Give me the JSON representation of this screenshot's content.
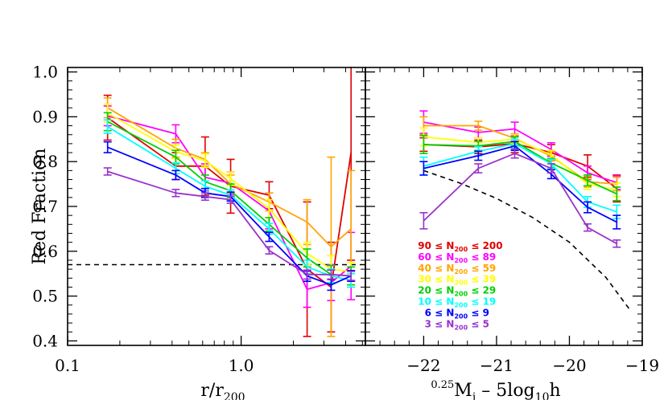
{
  "chart_data": [
    {
      "type": "line",
      "panel": "left",
      "xscale": "log",
      "xlim": [
        0.1,
        5.2
      ],
      "ylim": [
        0.39,
        1.01
      ],
      "xlabel_base": "r/r",
      "xlabel_sub": "200",
      "ylabel": "Red Fraction",
      "xtick_values": [
        0.1,
        1.0
      ],
      "xtick_labels": [
        "0.1",
        "1.0"
      ],
      "ytick_values": [
        0.4,
        0.5,
        0.6,
        0.7,
        0.8,
        0.9,
        1.0
      ],
      "ytick_labels": [
        "0.4",
        "0.5",
        "0.6",
        "0.7",
        "0.8",
        "0.9",
        "1.0"
      ],
      "reference_line": {
        "style": "dashed",
        "y": 0.57
      },
      "x": [
        0.17,
        0.42,
        0.62,
        0.87,
        1.45,
        2.4,
        3.3,
        4.3
      ],
      "series": [
        {
          "color": "#e00000",
          "values": [
            0.898,
            0.79,
            0.79,
            0.745,
            0.725,
            0.56,
            0.52,
            0.82
          ],
          "errors": [
            0.05,
            0.03,
            0.065,
            0.06,
            0.03,
            0.15,
            0.1,
            0.24
          ]
        },
        {
          "color": "#ff00ff",
          "values": [
            0.902,
            0.862,
            0.765,
            0.752,
            0.69,
            0.515,
            0.53,
            0.567
          ],
          "errors": [
            0.022,
            0.02,
            0.03,
            0.025,
            0.04,
            0.04,
            0.04,
            0.075
          ]
        },
        {
          "color": "#ffa500",
          "values": [
            0.92,
            0.83,
            0.805,
            0.75,
            0.71,
            0.665,
            0.61,
            0.65
          ],
          "errors": [
            0.022,
            0.02,
            0.015,
            0.02,
            0.02,
            0.05,
            0.2,
            0.13
          ]
        },
        {
          "color": "#ffff00",
          "values": [
            0.908,
            0.822,
            0.802,
            0.762,
            0.695,
            0.595,
            0.56,
            0.555
          ],
          "errors": [
            0.02,
            0.015,
            0.015,
            0.015,
            0.02,
            0.025,
            0.03,
            0.02
          ]
        },
        {
          "color": "#00d000",
          "values": [
            0.889,
            0.81,
            0.755,
            0.735,
            0.66,
            0.585,
            0.548,
            0.545
          ],
          "errors": [
            0.02,
            0.015,
            0.015,
            0.015,
            0.015,
            0.02,
            0.02,
            0.02
          ]
        },
        {
          "color": "#00ffff",
          "values": [
            0.878,
            0.785,
            0.745,
            0.725,
            0.65,
            0.565,
            0.545,
            0.535
          ],
          "errors": [
            0.015,
            0.012,
            0.012,
            0.012,
            0.012,
            0.015,
            0.015,
            0.015
          ]
        },
        {
          "color": "#0000ff",
          "values": [
            0.832,
            0.77,
            0.73,
            0.722,
            0.632,
            0.545,
            0.525,
            0.545
          ],
          "errors": [
            0.012,
            0.01,
            0.01,
            0.01,
            0.01,
            0.012,
            0.012,
            0.012
          ]
        },
        {
          "color": "#9932cc",
          "values": [
            0.778,
            0.73,
            0.722,
            0.715,
            0.602,
            0.548,
            0.548,
            0.545
          ],
          "errors": [
            0.008,
            0.008,
            0.008,
            0.008,
            0.008,
            0.01,
            0.01,
            0.01
          ]
        }
      ]
    },
    {
      "type": "line",
      "panel": "right",
      "xlim": [
        -22.8,
        -19
      ],
      "ylim": [
        0.39,
        1.01
      ],
      "xlabel_prefix": "0.25",
      "xlabel_base": "M",
      "xlabel_sub": "i",
      "xlabel_mid": " – 5log",
      "xlabel_sub2": "10",
      "xlabel_tail": "h",
      "xtick_values": [
        -22,
        -21,
        -20,
        -19
      ],
      "xtick_labels": [
        "−22",
        "−21",
        "−20",
        "−19"
      ],
      "dashed_curve": {
        "style": "dashed",
        "x": [
          -22.0,
          -21.5,
          -21.0,
          -20.5,
          -20.0,
          -19.5,
          -19.15
        ],
        "y": [
          0.78,
          0.752,
          0.718,
          0.675,
          0.62,
          0.542,
          0.465
        ]
      },
      "x": [
        -22.0,
        -21.25,
        -20.75,
        -20.25,
        -19.75,
        -19.35
      ],
      "series": [
        {
          "color": "#e00000",
          "values": [
            0.838,
            0.833,
            0.84,
            0.82,
            0.79,
            0.74
          ],
          "errors": [
            0.015,
            0.015,
            0.02,
            0.018,
            0.025,
            0.03
          ]
        },
        {
          "color": "#ff00ff",
          "values": [
            0.888,
            0.865,
            0.873,
            0.827,
            0.775,
            0.753
          ],
          "errors": [
            0.025,
            0.012,
            0.015,
            0.015,
            0.015,
            0.015
          ]
        },
        {
          "color": "#ffa500",
          "values": [
            0.88,
            0.88,
            0.852,
            0.812,
            0.755,
            0.75
          ],
          "errors": [
            0.02,
            0.01,
            0.01,
            0.01,
            0.012,
            0.015
          ]
        },
        {
          "color": "#ffff00",
          "values": [
            0.855,
            0.843,
            0.85,
            0.815,
            0.75,
            0.737
          ],
          "errors": [
            0.02,
            0.01,
            0.01,
            0.01,
            0.012,
            0.015
          ]
        },
        {
          "color": "#00d000",
          "values": [
            0.838,
            0.835,
            0.845,
            0.797,
            0.758,
            0.728
          ],
          "errors": [
            0.02,
            0.01,
            0.01,
            0.01,
            0.012,
            0.015
          ]
        },
        {
          "color": "#00ffff",
          "values": [
            0.79,
            0.823,
            0.84,
            0.795,
            0.71,
            0.688
          ],
          "errors": [
            0.02,
            0.01,
            0.01,
            0.01,
            0.012,
            0.015
          ]
        },
        {
          "color": "#0000ff",
          "values": [
            0.785,
            0.813,
            0.835,
            0.772,
            0.698,
            0.665
          ],
          "errors": [
            0.015,
            0.01,
            0.01,
            0.01,
            0.012,
            0.015
          ]
        },
        {
          "color": "#9932cc",
          "values": [
            0.668,
            0.785,
            0.818,
            0.785,
            0.653,
            0.617
          ],
          "errors": [
            0.018,
            0.01,
            0.01,
            0.01,
            0.008,
            0.008
          ]
        }
      ]
    }
  ],
  "legend": [
    {
      "lo": "90",
      "hi": "200",
      "color": "#e00000"
    },
    {
      "lo": "60",
      "hi": "89",
      "color": "#ff00ff"
    },
    {
      "lo": "40",
      "hi": "59",
      "color": "#ffa500"
    },
    {
      "lo": "30",
      "hi": "39",
      "color": "#ffff00"
    },
    {
      "lo": "20",
      "hi": "29",
      "color": "#00d000"
    },
    {
      "lo": "10",
      "hi": "19",
      "color": "#00ffff"
    },
    {
      "lo": "6",
      "hi": "9",
      "color": "#0000ff"
    },
    {
      "lo": "3",
      "hi": "5",
      "color": "#9932cc"
    }
  ],
  "legend_text": {
    "leq": "≤",
    "n": "N",
    "sub": "200"
  }
}
